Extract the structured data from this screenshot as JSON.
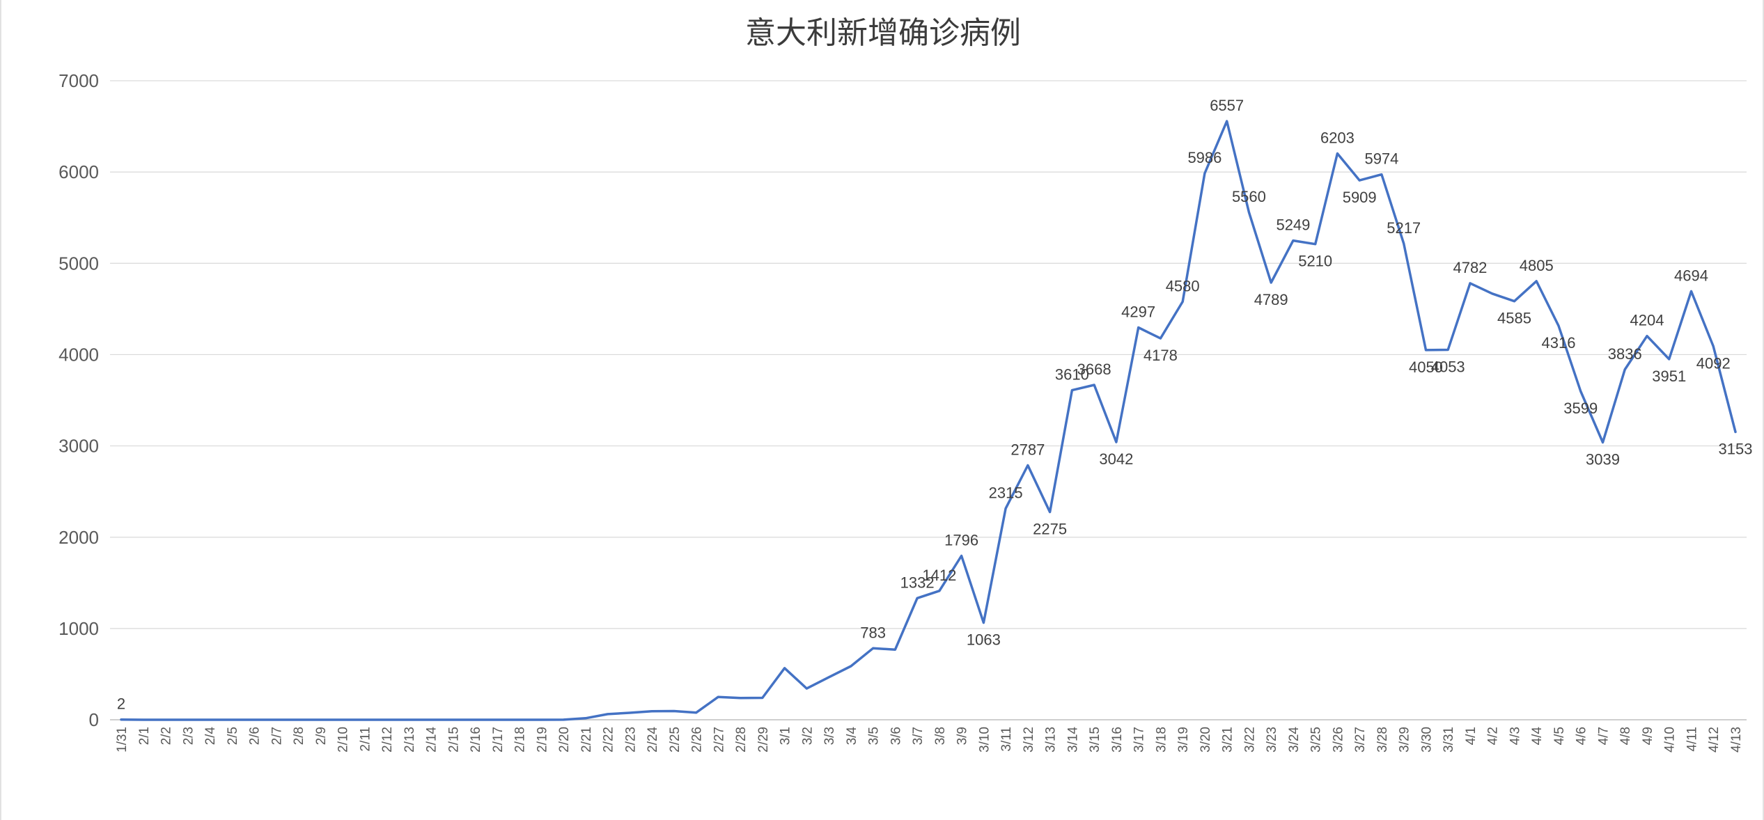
{
  "title": "意大利新增确诊病例",
  "colors": {
    "line": "#4472C4",
    "grid": "#D9D9D9",
    "axis": "#BFBFBF",
    "tick_text": "#595959",
    "data_label_text": "#404040",
    "title_text": "#3B3B3B",
    "background": "#FFFFFF"
  },
  "chart_data": {
    "type": "line",
    "title": "意大利新增确诊病例",
    "xlabel": "",
    "ylabel": "",
    "ylim": [
      0,
      7000
    ],
    "yticks": [
      0,
      1000,
      2000,
      3000,
      4000,
      5000,
      6000,
      7000
    ],
    "grid": "horizontal",
    "legend": "none",
    "x": [
      "1/31",
      "2/1",
      "2/2",
      "2/3",
      "2/4",
      "2/5",
      "2/6",
      "2/7",
      "2/8",
      "2/9",
      "2/10",
      "2/11",
      "2/12",
      "2/13",
      "2/14",
      "2/15",
      "2/16",
      "2/17",
      "2/18",
      "2/19",
      "2/20",
      "2/21",
      "2/22",
      "2/23",
      "2/24",
      "2/25",
      "2/26",
      "2/27",
      "2/28",
      "2/29",
      "3/1",
      "3/2",
      "3/3",
      "3/4",
      "3/5",
      "3/6",
      "3/7",
      "3/8",
      "3/9",
      "3/10",
      "3/11",
      "3/12",
      "3/13",
      "3/14",
      "3/15",
      "3/16",
      "3/17",
      "3/18",
      "3/19",
      "3/20",
      "3/21",
      "3/22",
      "3/23",
      "3/24",
      "3/25",
      "3/26",
      "3/27",
      "3/28",
      "3/29",
      "3/30",
      "3/31",
      "4/1",
      "4/2",
      "4/3",
      "4/4",
      "4/5",
      "4/6",
      "4/7",
      "4/8",
      "4/9",
      "4/10",
      "4/11",
      "4/12",
      "4/13"
    ],
    "values": [
      2,
      0,
      0,
      0,
      0,
      0,
      0,
      0,
      0,
      0,
      0,
      0,
      0,
      0,
      0,
      0,
      0,
      0,
      0,
      0,
      1,
      17,
      62,
      76,
      93,
      95,
      78,
      250,
      238,
      240,
      566,
      342,
      466,
      587,
      783,
      769,
      1332,
      1412,
      1796,
      1063,
      2315,
      2787,
      2275,
      3610,
      3668,
      3042,
      4297,
      4178,
      4580,
      5986,
      6557,
      5560,
      4789,
      5249,
      5210,
      6203,
      5909,
      5974,
      5217,
      4050,
      4053,
      4782,
      4668,
      4585,
      4805,
      4316,
      3599,
      3039,
      3836,
      4204,
      3951,
      4694,
      4092,
      3153
    ],
    "data_label_positions": [
      "above",
      null,
      null,
      null,
      null,
      null,
      null,
      null,
      null,
      null,
      null,
      null,
      null,
      null,
      null,
      null,
      null,
      null,
      null,
      null,
      null,
      null,
      null,
      null,
      null,
      null,
      null,
      null,
      null,
      null,
      null,
      null,
      null,
      null,
      "above",
      null,
      "above",
      "above",
      "above",
      "below",
      "above",
      "above",
      "below",
      "above",
      "above",
      "below",
      "above",
      "below",
      "above",
      "above",
      "above",
      "above",
      "below",
      "above",
      "below",
      "above",
      "below",
      "above",
      "above",
      "below",
      "below",
      "above",
      null,
      "below",
      "above",
      "below",
      "below",
      "below",
      "above",
      "above",
      "below",
      "above",
      "below",
      "below"
    ]
  }
}
